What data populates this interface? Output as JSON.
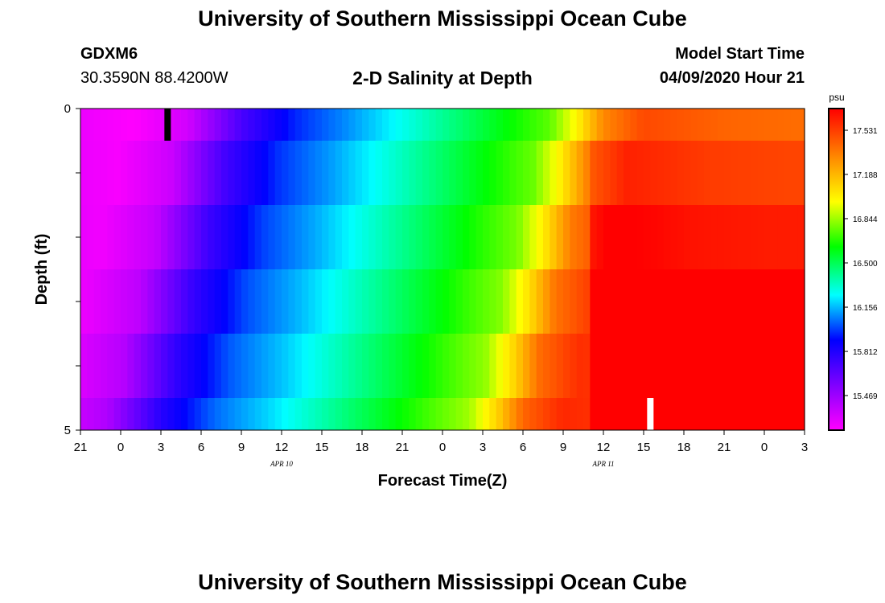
{
  "header": {
    "title": "University of Southern Mississippi Ocean Cube",
    "station_id": "GDXM6",
    "coordinates": "30.3590N 88.4200W",
    "subtitle": "2-D Salinity at Depth",
    "model_start_label": "Model Start Time",
    "model_start_value": "04/09/2020 Hour 21"
  },
  "footer": {
    "title": "University of Southern Mississippi Ocean Cube"
  },
  "chart_data": {
    "type": "heatmap",
    "xlabel": "Forecast Time(Z)",
    "ylabel": "Depth (ft)",
    "x_tick_labels": [
      "21",
      "0",
      "3",
      "6",
      "9",
      "12",
      "15",
      "18",
      "21",
      "0",
      "3",
      "6",
      "9",
      "12",
      "15",
      "18",
      "21",
      "0",
      "3"
    ],
    "x_date_labels": [
      {
        "label": "APR 10",
        "tick_index": 5
      },
      {
        "label": "APR 11",
        "tick_index": 13
      }
    ],
    "x_range_hours": [
      0,
      54
    ],
    "y_tick_labels": [
      "0",
      "5"
    ],
    "y_range": [
      0,
      5
    ],
    "y_minor_ticks": 5,
    "depth_bands": [
      {
        "top": 0.0,
        "bottom": 0.5
      },
      {
        "top": 0.5,
        "bottom": 1.5
      },
      {
        "top": 1.5,
        "bottom": 2.5
      },
      {
        "top": 2.5,
        "bottom": 3.5
      },
      {
        "top": 3.5,
        "bottom": 4.5
      },
      {
        "top": 4.5,
        "bottom": 5.0
      }
    ],
    "colorbar": {
      "unit": "psu",
      "range": [
        15.2,
        17.7
      ],
      "ticks": [
        "17.531",
        "17.188",
        "16.844",
        "16.500",
        "16.156",
        "15.812",
        "15.469"
      ],
      "colors": [
        "#ff00ff",
        "#8000ff",
        "#0000ff",
        "#00ffff",
        "#00ff00",
        "#ffff00",
        "#ff8000",
        "#ff0000"
      ]
    },
    "min_marker": {
      "hour": 6.5,
      "depth": 0.25,
      "color": "#000000"
    },
    "max_marker": {
      "hour": 42.5,
      "depth": 4.75,
      "color": "#ffffff"
    }
  }
}
